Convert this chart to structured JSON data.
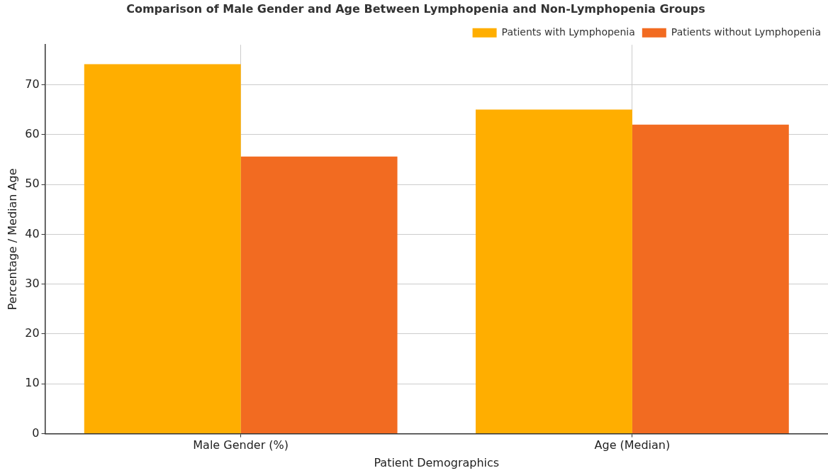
{
  "chart_data": {
    "type": "bar",
    "title": "Comparison of Male Gender and Age Between Lymphopenia and Non-Lymphopenia Groups",
    "xlabel": "Patient Demographics",
    "ylabel": "Percentage / Median Age",
    "categories": [
      "Male Gender (%)",
      "Age (Median)"
    ],
    "series": [
      {
        "name": "Patients with Lymphopenia",
        "color": "#ffae00",
        "values": [
          74.1,
          65
        ]
      },
      {
        "name": "Patients without Lymphopenia",
        "color": "#f26b21",
        "values": [
          55.6,
          62
        ]
      }
    ],
    "ylim": [
      0,
      78
    ],
    "yticks": [
      0,
      10,
      20,
      30,
      40,
      50,
      60,
      70
    ],
    "grid": true,
    "legend": "top right"
  }
}
